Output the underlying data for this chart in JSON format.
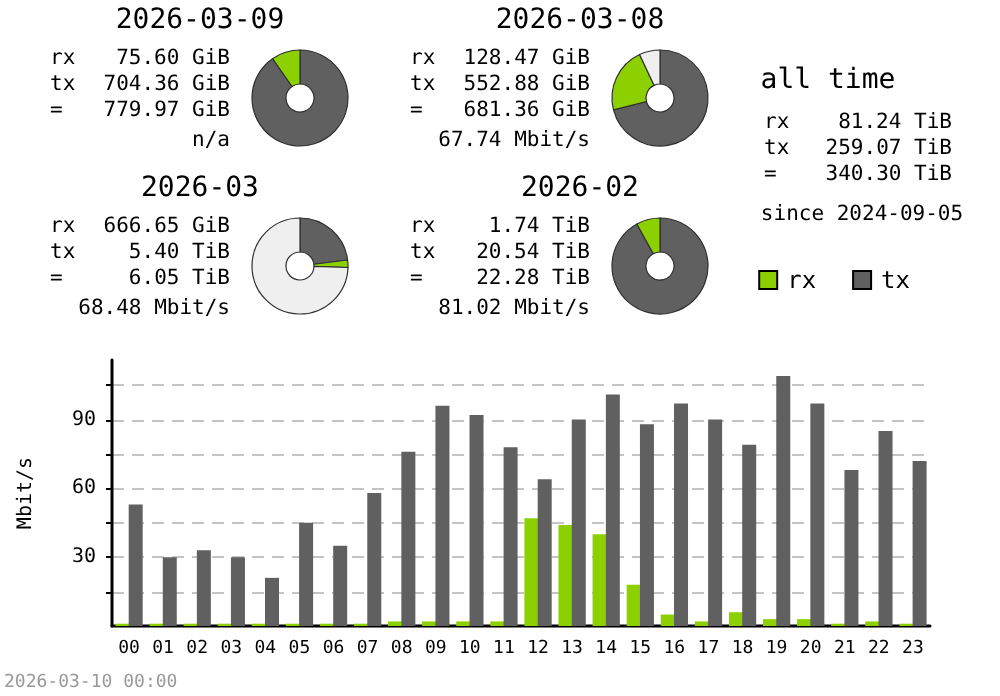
{
  "chart_data": [
    {
      "type": "donut",
      "title": "2026-03-09",
      "categories": [
        null,
        null
      ],
      "values": [
        90.3,
        9.7
      ],
      "colors": [
        "#606060",
        "#8cd000"
      ],
      "annotations": [
        "rx 75.60 GiB",
        "tx 704.36 GiB",
        "= 779.97 GiB",
        "n/a"
      ]
    },
    {
      "type": "donut",
      "title": "2026-03-08",
      "categories": [
        null,
        null,
        null
      ],
      "values": [
        71,
        22,
        7
      ],
      "colors": [
        "#606060",
        "#8cd000",
        "#efefef"
      ],
      "annotations": [
        "rx 128.47 GiB",
        "tx 552.88 GiB",
        "= 681.36 GiB",
        "67.74 Mbit/s"
      ]
    },
    {
      "type": "donut",
      "title": "2026-03",
      "categories": [
        null,
        null,
        null
      ],
      "values": [
        23,
        2.5,
        74.5
      ],
      "colors": [
        "#606060",
        "#8cd000",
        "#efefef"
      ],
      "annotations": [
        "rx 666.65 GiB",
        "tx 5.40 TiB",
        "= 6.05 TiB",
        "68.48 Mbit/s"
      ]
    },
    {
      "type": "donut",
      "title": "2026-02",
      "categories": [
        null,
        null
      ],
      "values": [
        92,
        8
      ],
      "colors": [
        "#606060",
        "#8cd000"
      ],
      "annotations": [
        "rx 1.74 TiB",
        "tx 20.54 TiB",
        "= 22.28 TiB",
        "81.02 Mbit/s"
      ]
    },
    {
      "type": "other",
      "title": "all time",
      "annotations": [
        "rx 81.24 TiB",
        "tx 259.07 TiB",
        "= 340.30 TiB",
        "since 2024-09-05"
      ]
    },
    {
      "type": "bar",
      "ylabel": "Mbit/s",
      "categories": [
        "00",
        "01",
        "02",
        "03",
        "04",
        "05",
        "06",
        "07",
        "08",
        "09",
        "10",
        "11",
        "12",
        "13",
        "14",
        "15",
        "16",
        "17",
        "18",
        "19",
        "20",
        "21",
        "22",
        "23"
      ],
      "series": [
        {
          "name": "rx",
          "color": "#8cd000",
          "values": [
            1,
            1,
            1,
            1,
            1,
            1,
            1,
            1,
            2,
            2,
            2,
            2,
            47,
            44,
            40,
            18,
            5,
            2,
            6,
            3,
            3,
            1,
            2,
            1
          ]
        },
        {
          "name": "tx",
          "color": "#606060",
          "values": [
            53,
            30,
            33,
            30,
            21,
            45,
            35,
            58,
            76,
            96,
            92,
            78,
            64,
            90,
            101,
            88,
            97,
            90,
            79,
            109,
            97,
            68,
            85,
            72
          ]
        }
      ],
      "ylim": [
        0,
        116
      ],
      "yticks": [
        {
          "value": 15,
          "label": null
        },
        30,
        {
          "value": 45,
          "label": null
        },
        60,
        {
          "value": 75,
          "label": null
        },
        90,
        {
          "value": 105,
          "label": null
        }
      ],
      "grid": "y",
      "legend": "top right",
      "annotations": [
        "2026-03-10 00:00"
      ]
    }
  ]
}
